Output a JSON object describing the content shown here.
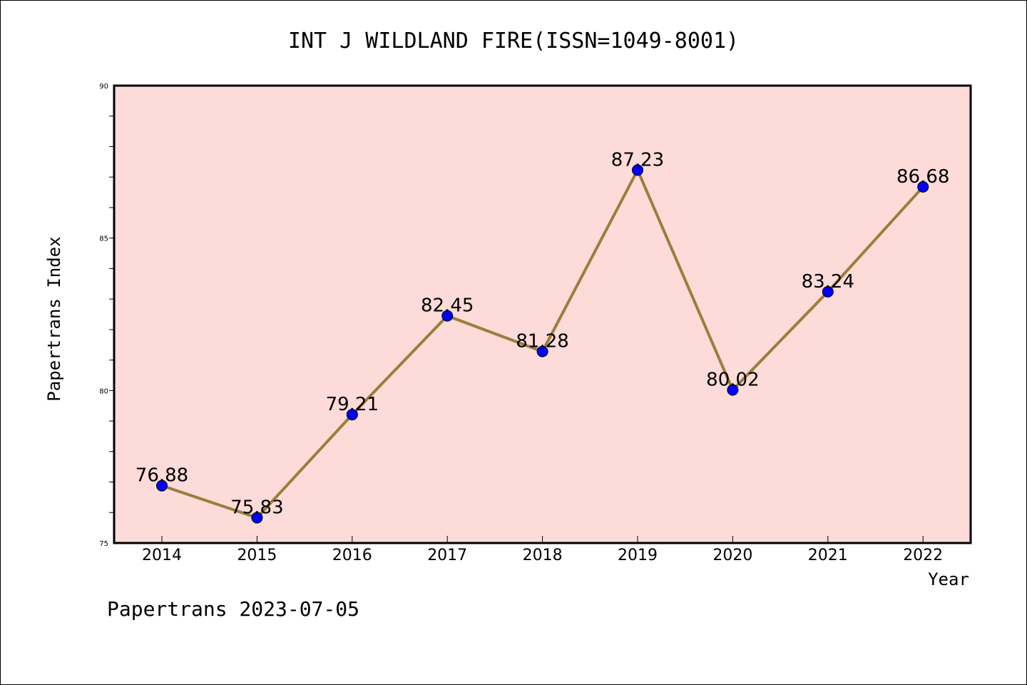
{
  "chart_data": {
    "type": "line",
    "title": "INT J WILDLAND FIRE(ISSN=1049-8001)",
    "xlabel": "Year",
    "ylabel": "Papertrans Index",
    "categories": [
      "2014",
      "2015",
      "2016",
      "2017",
      "2018",
      "2019",
      "2020",
      "2021",
      "2022"
    ],
    "series": [
      {
        "values": [
          76.88,
          75.83,
          79.21,
          82.45,
          81.28,
          87.23,
          80.02,
          83.24,
          86.68
        ],
        "labels": [
          "76.88",
          "75.83",
          "79.21",
          "82.45",
          "81.28",
          "87.23",
          "80.02",
          "83.24",
          "86.68"
        ]
      }
    ],
    "ylim": [
      75,
      90
    ],
    "yticks": [
      "75",
      "80",
      "85",
      "90"
    ],
    "grid": false,
    "colors": {
      "plot_background": "#fddbd8",
      "line": "#9a7f3c",
      "marker": "#0000ff"
    }
  },
  "footer": "Papertrans 2023-07-05"
}
